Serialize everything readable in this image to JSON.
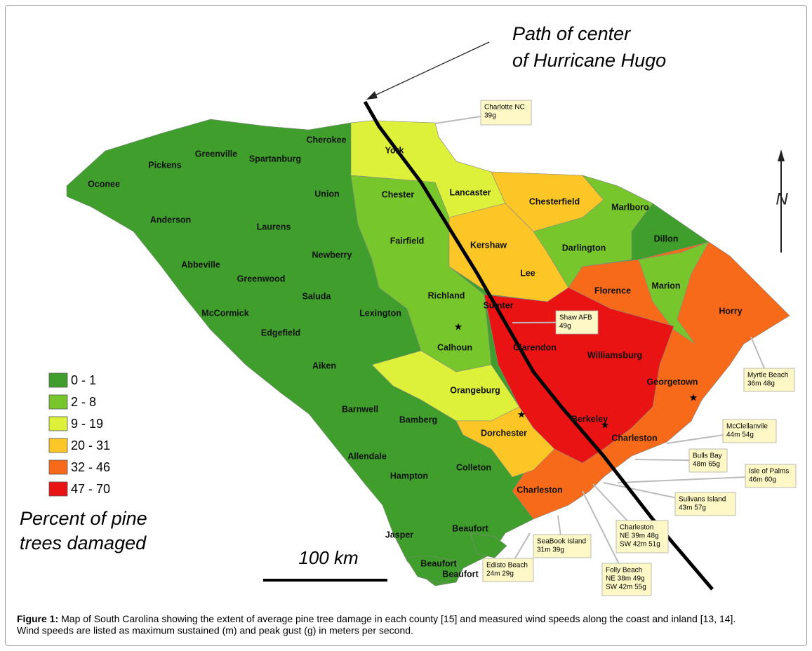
{
  "annotation": {
    "lines": [
      "Path of center",
      "of Hurricane Hugo"
    ]
  },
  "north": "N",
  "scale_bar": "100 km",
  "legend": {
    "title_lines": [
      "Percent of pine",
      "trees damaged"
    ],
    "items": [
      {
        "label": "0 - 1",
        "color": "#3f9e2c"
      },
      {
        "label": "2 - 8",
        "color": "#77c62c"
      },
      {
        "label": "9 - 19",
        "color": "#ddf03a"
      },
      {
        "label": "20 - 31",
        "color": "#fcc726"
      },
      {
        "label": "32 - 46",
        "color": "#f76a1a"
      },
      {
        "label": "47 - 70",
        "color": "#ea1313"
      }
    ]
  },
  "counties": [
    "Cherokee",
    "Greenville",
    "Spartanburg",
    "Pickens",
    "Oconee",
    "York",
    "Chester",
    "Lancaster",
    "Chesterfield",
    "Marlboro",
    "Union",
    "Anderson",
    "Laurens",
    "Fairfield",
    "Kershaw",
    "Darlington",
    "Dillon",
    "Newberry",
    "Abbeville",
    "Lee",
    "Greenwood",
    "Florence",
    "Marion",
    "Saluda",
    "Richland",
    "Sumter",
    "Horry",
    "McCormick",
    "Lexington",
    "Edgefield",
    "Calhoun",
    "Clarendon",
    "Williamsburg",
    "Aiken",
    "Georgetown",
    "Orangeburg",
    "Barnwell",
    "Bamberg",
    "Berkeley",
    "Dorchester",
    "Charleston",
    "Allendale",
    "Colleton",
    "Hampton",
    "Charleston",
    "Jasper",
    "Beaufort",
    "Beaufort",
    "Beaufort"
  ],
  "stations": [
    {
      "lines": [
        "Charlotte NC",
        "39g"
      ]
    },
    {
      "lines": [
        "Shaw AFB",
        "49g"
      ]
    },
    {
      "lines": [
        "Myrtle Beach",
        "36m 48g"
      ]
    },
    {
      "lines": [
        "McClellanvile",
        "44m 54g"
      ]
    },
    {
      "lines": [
        "Bulls Bay",
        "48m 65g"
      ]
    },
    {
      "lines": [
        "Isle of Palms",
        "46m 60g"
      ]
    },
    {
      "lines": [
        "Sulivans Island",
        "43m 57g"
      ]
    },
    {
      "lines": [
        "Charleston",
        "NE 39m 48g",
        "SW 42m 51g"
      ]
    },
    {
      "lines": [
        "Folly Beach",
        "NE 38m 49g",
        "SW 42m 55g"
      ]
    },
    {
      "lines": [
        "SeaBook Island",
        "31m 39g"
      ]
    },
    {
      "lines": [
        "Edisto Beach",
        "24m 29g"
      ]
    }
  ],
  "caption": {
    "label": "Figure 1:",
    "lines": [
      "Map of South Carolina showing the extent of average pine tree damage in each county [15] and measured wind speeds along the coast and inland [13, 14].",
      "Wind speeds are listed as maximum sustained (m) and peak gust (g) in meters per second."
    ]
  }
}
